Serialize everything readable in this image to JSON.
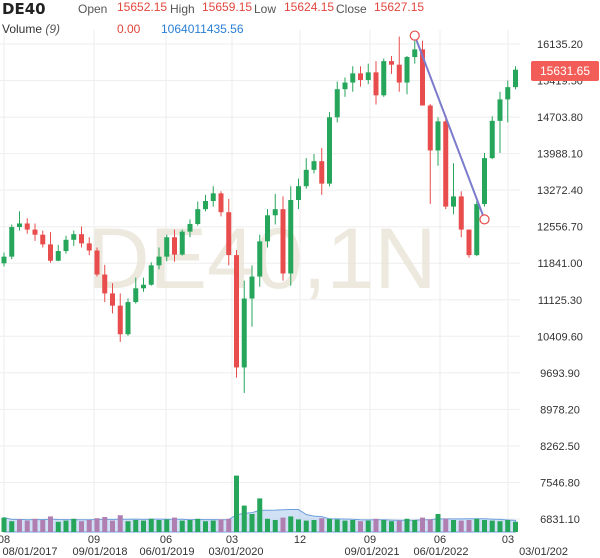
{
  "symbol": "DE40",
  "ohlc": {
    "open_label": "Open",
    "open": "15652.15",
    "high_label": "High",
    "high": "15659.15",
    "low_label": "Low",
    "low": "15624.15",
    "close_label": "Close",
    "close": "15627.15"
  },
  "volume": {
    "label": "Volume",
    "period": "(9)",
    "value": "0.00",
    "ma": "1064011435.56"
  },
  "watermark": "DE40,1N",
  "last_price": "15631.65",
  "colors": {
    "up": "#26a65b",
    "down": "#e84c4c",
    "volume_area": "#a9c8ee",
    "vol_up": "#26a65b",
    "vol_down": "#b07fb2",
    "trendline": "#7c7ccc",
    "grid": "#eeeeee"
  },
  "chart_data": {
    "type": "candlestick",
    "price_axis_ticks": [
      "16135.20",
      "15419.50",
      "14703.80",
      "13988.10",
      "13272.40",
      "12556.70",
      "11841.00",
      "11125.30",
      "10409.60",
      "9693.90",
      "8978.20",
      "8262.50",
      "7546.80",
      "6831.10"
    ],
    "time_axis_ticks": [
      "08",
      "08/01/2017",
      "09",
      "09/01/2018",
      "06/01/2019",
      "06",
      "03",
      "03/01/2020",
      "12",
      "09",
      "09/01/2021",
      "06/01/2022",
      "06",
      "03",
      "03/01/202"
    ],
    "ylim": [
      6600,
      16500
    ],
    "candles": [
      [
        11840,
        12050,
        11780,
        11970
      ],
      [
        11970,
        12600,
        11920,
        12550
      ],
      [
        12550,
        12860,
        12480,
        12620
      ],
      [
        12620,
        12720,
        12420,
        12500
      ],
      [
        12500,
        12620,
        12280,
        12400
      ],
      [
        12400,
        12480,
        12150,
        12210
      ],
      [
        12210,
        12450,
        11850,
        11890
      ],
      [
        11890,
        12200,
        11880,
        12080
      ],
      [
        12080,
        12380,
        12030,
        12300
      ],
      [
        12300,
        12480,
        12180,
        12410
      ],
      [
        12410,
        12560,
        12150,
        12230
      ],
      [
        12230,
        12350,
        12000,
        12090
      ],
      [
        12090,
        12150,
        11580,
        11620
      ],
      [
        11620,
        11810,
        11080,
        11250
      ],
      [
        11250,
        11450,
        10860,
        11010
      ],
      [
        11010,
        11250,
        10300,
        10450
      ],
      [
        10450,
        11150,
        10420,
        11080
      ],
      [
        11080,
        11560,
        11050,
        11350
      ],
      [
        11350,
        11560,
        11280,
        11420
      ],
      [
        11420,
        11860,
        11400,
        11800
      ],
      [
        11800,
        12150,
        11720,
        11970
      ],
      [
        11970,
        12400,
        11880,
        12350
      ],
      [
        12350,
        12500,
        11870,
        12010
      ],
      [
        12010,
        12500,
        11990,
        12460
      ],
      [
        12460,
        12700,
        12350,
        12610
      ],
      [
        12610,
        13050,
        12580,
        12900
      ],
      [
        12900,
        13180,
        12860,
        13060
      ],
      [
        13060,
        13350,
        12950,
        13210
      ],
      [
        13210,
        13250,
        12760,
        12840
      ],
      [
        12840,
        13100,
        11800,
        12000
      ],
      [
        12000,
        12100,
        9600,
        9800
      ],
      [
        9800,
        11500,
        9300,
        11150
      ],
      [
        11150,
        11800,
        10600,
        11580
      ],
      [
        11580,
        12400,
        11380,
        12270
      ],
      [
        12270,
        12900,
        12150,
        12780
      ],
      [
        12780,
        13200,
        12600,
        12900
      ],
      [
        12900,
        13150,
        11500,
        11640
      ],
      [
        11640,
        13350,
        11400,
        13080
      ],
      [
        13080,
        13500,
        12900,
        13350
      ],
      [
        13350,
        13900,
        13300,
        13670
      ],
      [
        13670,
        13980,
        13600,
        13840
      ],
      [
        13840,
        14100,
        13180,
        13400
      ],
      [
        13400,
        14800,
        13350,
        14700
      ],
      [
        14700,
        15400,
        14600,
        15250
      ],
      [
        15250,
        15480,
        15100,
        15380
      ],
      [
        15380,
        15700,
        15200,
        15560
      ],
      [
        15560,
        15700,
        15300,
        15430
      ],
      [
        15430,
        15750,
        15350,
        15580
      ],
      [
        15580,
        15800,
        14950,
        15130
      ],
      [
        15130,
        15850,
        15100,
        15800
      ],
      [
        15800,
        15900,
        15550,
        15730
      ],
      [
        15730,
        16280,
        15200,
        15380
      ],
      [
        15380,
        15900,
        15150,
        15880
      ],
      [
        15880,
        16200,
        15750,
        16030
      ],
      [
        16030,
        16200,
        14950,
        14930
      ],
      [
        14930,
        14960,
        13000,
        14050
      ],
      [
        14050,
        14700,
        13750,
        14620
      ],
      [
        14620,
        14750,
        12900,
        12950
      ],
      [
        12950,
        13800,
        12800,
        13150
      ],
      [
        13150,
        13250,
        12350,
        12500
      ],
      [
        12500,
        12500,
        11950,
        12000
      ],
      [
        12000,
        13060,
        11980,
        13000
      ],
      [
        13000,
        14000,
        12950,
        13900
      ],
      [
        13900,
        14720,
        13880,
        14630
      ],
      [
        14630,
        15200,
        14000,
        15050
      ],
      [
        15050,
        15420,
        14600,
        15290
      ],
      [
        15290,
        15700,
        15250,
        15631.65
      ]
    ],
    "volumes": [
      [
        120,
        1
      ],
      [
        90,
        1
      ],
      [
        105,
        0
      ],
      [
        95,
        0
      ],
      [
        110,
        0
      ],
      [
        100,
        0
      ],
      [
        130,
        0
      ],
      [
        85,
        1
      ],
      [
        95,
        1
      ],
      [
        110,
        1
      ],
      [
        90,
        0
      ],
      [
        100,
        0
      ],
      [
        115,
        0
      ],
      [
        125,
        0
      ],
      [
        95,
        0
      ],
      [
        140,
        0
      ],
      [
        90,
        1
      ],
      [
        100,
        1
      ],
      [
        95,
        1
      ],
      [
        110,
        1
      ],
      [
        100,
        1
      ],
      [
        105,
        1
      ],
      [
        120,
        0
      ],
      [
        95,
        1
      ],
      [
        100,
        1
      ],
      [
        110,
        1
      ],
      [
        90,
        1
      ],
      [
        95,
        1
      ],
      [
        105,
        0
      ],
      [
        110,
        0
      ],
      [
        470,
        1
      ],
      [
        220,
        1
      ],
      [
        150,
        1
      ],
      [
        280,
        1
      ],
      [
        110,
        1
      ],
      [
        100,
        1
      ],
      [
        120,
        0
      ],
      [
        130,
        1
      ],
      [
        105,
        1
      ],
      [
        95,
        1
      ],
      [
        100,
        1
      ],
      [
        115,
        0
      ],
      [
        110,
        1
      ],
      [
        105,
        1
      ],
      [
        95,
        1
      ],
      [
        100,
        1
      ],
      [
        90,
        0
      ],
      [
        95,
        1
      ],
      [
        110,
        0
      ],
      [
        100,
        1
      ],
      [
        90,
        1
      ],
      [
        95,
        0
      ],
      [
        110,
        1
      ],
      [
        100,
        1
      ],
      [
        120,
        0
      ],
      [
        105,
        0
      ],
      [
        150,
        1
      ],
      [
        110,
        0
      ],
      [
        100,
        1
      ],
      [
        95,
        0
      ],
      [
        100,
        0
      ],
      [
        110,
        1
      ],
      [
        100,
        1
      ],
      [
        95,
        1
      ],
      [
        90,
        1
      ],
      [
        100,
        1
      ],
      [
        85,
        1
      ]
    ],
    "trendline": {
      "from_index": 53,
      "from_value": 16300,
      "to_index": 62,
      "to_value": 12700
    }
  }
}
